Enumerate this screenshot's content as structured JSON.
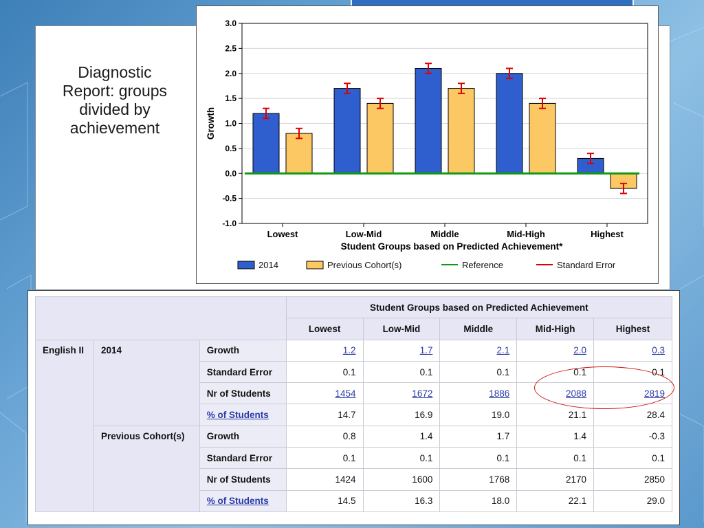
{
  "slide": {
    "caption_lines": [
      "Diagnostic",
      "Report:  groups",
      "divided by",
      "achievement"
    ]
  },
  "chart_data": {
    "type": "bar",
    "categories": [
      "Lowest",
      "Low-Mid",
      "Middle",
      "Mid-High",
      "Highest"
    ],
    "series": [
      {
        "name": "2014",
        "values": [
          1.2,
          1.7,
          2.1,
          2.0,
          0.3
        ],
        "errors": [
          0.1,
          0.1,
          0.1,
          0.1,
          0.1
        ],
        "color": "#2f5fcf"
      },
      {
        "name": "Previous Cohort(s)",
        "values": [
          0.8,
          1.4,
          1.7,
          1.4,
          -0.3
        ],
        "errors": [
          0.1,
          0.1,
          0.1,
          0.1,
          0.1
        ],
        "color": "#fcc864"
      }
    ],
    "reference_value": 0.0,
    "ylim": [
      -1.0,
      3.0
    ],
    "yticks": [
      "3.0",
      "2.5",
      "2.0",
      "1.5",
      "1.0",
      "0.5",
      "0.0",
      "-0.5",
      "-1.0"
    ],
    "ytick_values": [
      3.0,
      2.5,
      2.0,
      1.5,
      1.0,
      0.5,
      0.0,
      -0.5,
      -1.0
    ],
    "xlabel": "Student Groups based on Predicted Achievement*",
    "ylabel": "Growth",
    "grid": true,
    "legend": [
      {
        "label": "2014",
        "kind": "box",
        "color": "#2f5fcf"
      },
      {
        "label": "Previous Cohort(s)",
        "kind": "box",
        "color": "#fcc864"
      },
      {
        "label": "Reference",
        "kind": "line",
        "color": "#119911"
      },
      {
        "label": "Standard Error",
        "kind": "line",
        "color": "#dd0000"
      }
    ],
    "legend_position": "bottom"
  },
  "table": {
    "group_header": "Student Groups based on Predicted Achievement",
    "columns": [
      "Lowest",
      "Low-Mid",
      "Middle",
      "Mid-High",
      "Highest"
    ],
    "subject": "English II",
    "blocks": [
      {
        "cohort": "2014",
        "rows": [
          {
            "stat": "Growth",
            "stat_link": false,
            "values": [
              "1.2",
              "1.7",
              "2.1",
              "2.0",
              "0.3"
            ],
            "links": true
          },
          {
            "stat": "Standard Error",
            "stat_link": false,
            "values": [
              "0.1",
              "0.1",
              "0.1",
              "0.1",
              "0.1"
            ],
            "links": false
          },
          {
            "stat": "Nr of Students",
            "stat_link": false,
            "values": [
              "1454",
              "1672",
              "1886",
              "2088",
              "2819"
            ],
            "links": true
          },
          {
            "stat": "% of Students",
            "stat_link": true,
            "values": [
              "14.7",
              "16.9",
              "19.0",
              "21.1",
              "28.4"
            ],
            "links": false
          }
        ]
      },
      {
        "cohort": "Previous Cohort(s)",
        "rows": [
          {
            "stat": "Growth",
            "stat_link": false,
            "values": [
              "0.8",
              "1.4",
              "1.7",
              "1.4",
              "-0.3"
            ],
            "links": false
          },
          {
            "stat": "Standard Error",
            "stat_link": false,
            "values": [
              "0.1",
              "0.1",
              "0.1",
              "0.1",
              "0.1"
            ],
            "links": false
          },
          {
            "stat": "Nr of Students",
            "stat_link": false,
            "values": [
              "1424",
              "1600",
              "1768",
              "2170",
              "2850"
            ],
            "links": false
          },
          {
            "stat": "% of Students",
            "stat_link": true,
            "values": [
              "14.5",
              "16.3",
              "18.0",
              "22.1",
              "29.0"
            ],
            "links": false
          }
        ]
      }
    ]
  },
  "highlight": {
    "color": "#d01010"
  }
}
